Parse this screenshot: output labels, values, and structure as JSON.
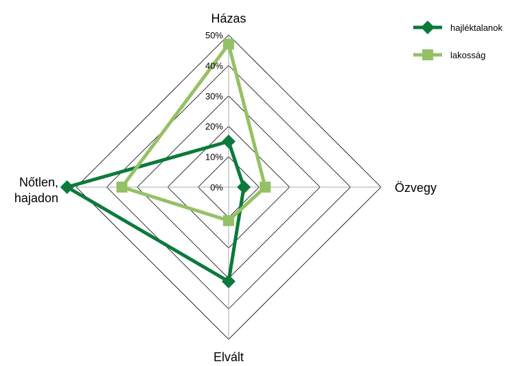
{
  "chart_data": {
    "type": "radar",
    "categories": [
      "Házas",
      "Özvegy",
      "Elvált",
      "Nőtlen, hajadon"
    ],
    "category_lines": [
      [
        "Házas"
      ],
      [
        "Özvegy"
      ],
      [
        "Elvált"
      ],
      [
        "Nőtlen,",
        "hajadon"
      ]
    ],
    "ticks": [
      "0%",
      "10%",
      "20%",
      "30%",
      "40%",
      "50%"
    ],
    "rlim": [
      0,
      50
    ],
    "grid": true,
    "legend_position": "top-right",
    "series": [
      {
        "name": "hajléktalanok",
        "values": [
          15,
          5,
          31,
          53
        ],
        "color": "#0b7a3b",
        "marker": "diamond"
      },
      {
        "name": "lakosság",
        "values": [
          47,
          12,
          11,
          35
        ],
        "color": "#94c165",
        "marker": "square"
      }
    ]
  }
}
